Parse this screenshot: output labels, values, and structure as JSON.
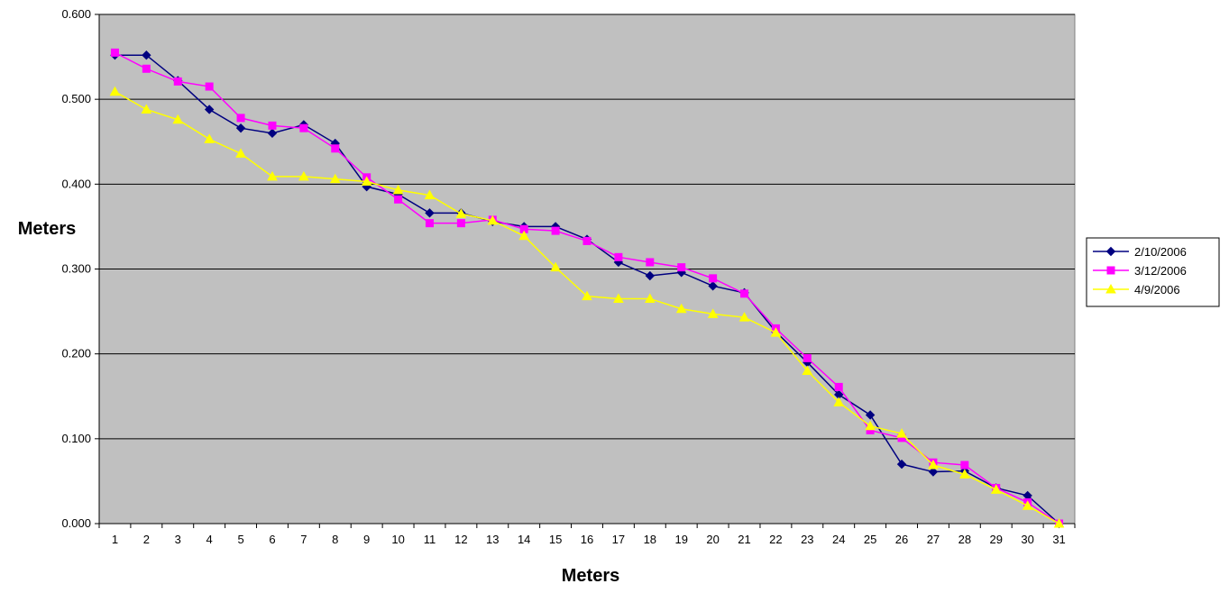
{
  "chart_data": {
    "type": "line",
    "title": "",
    "xlabel": "Meters",
    "ylabel": "Meters",
    "ylim": [
      0,
      0.6
    ],
    "yticks": [
      "0.000",
      "0.100",
      "0.200",
      "0.300",
      "0.400",
      "0.500",
      "0.600"
    ],
    "categories": [
      "1",
      "2",
      "3",
      "4",
      "5",
      "6",
      "7",
      "8",
      "9",
      "10",
      "11",
      "12",
      "13",
      "14",
      "15",
      "16",
      "17",
      "18",
      "19",
      "20",
      "21",
      "22",
      "23",
      "24",
      "25",
      "26",
      "27",
      "28",
      "29",
      "30",
      "31"
    ],
    "grid": "horizontal major gridlines",
    "legend_position": "right",
    "plot_background": "#c0c0c0",
    "series": [
      {
        "name": "2/10/2006",
        "color": "#000080",
        "marker": "diamond",
        "values": [
          0.552,
          0.552,
          0.522,
          0.488,
          0.466,
          0.46,
          0.47,
          0.448,
          0.397,
          0.388,
          0.366,
          0.366,
          0.356,
          0.35,
          0.35,
          0.335,
          0.308,
          0.292,
          0.296,
          0.28,
          0.272,
          0.226,
          0.19,
          0.152,
          0.128,
          0.07,
          0.061,
          0.062,
          0.042,
          0.033,
          0.0
        ]
      },
      {
        "name": "3/12/2006",
        "color": "#ff00ff",
        "marker": "square",
        "values": [
          0.555,
          0.536,
          0.521,
          0.515,
          0.478,
          0.469,
          0.466,
          0.442,
          0.408,
          0.382,
          0.354,
          0.354,
          0.358,
          0.347,
          0.345,
          0.333,
          0.314,
          0.308,
          0.302,
          0.289,
          0.271,
          0.23,
          0.195,
          0.161,
          0.11,
          0.101,
          0.072,
          0.069,
          0.042,
          0.025,
          0.0
        ]
      },
      {
        "name": "4/9/2006",
        "color": "#ffff00",
        "marker": "triangle",
        "values": [
          0.509,
          0.488,
          0.476,
          0.453,
          0.436,
          0.409,
          0.409,
          0.406,
          0.403,
          0.393,
          0.387,
          0.365,
          0.357,
          0.339,
          0.302,
          0.268,
          0.265,
          0.265,
          0.253,
          0.247,
          0.243,
          0.225,
          0.18,
          0.143,
          0.115,
          0.106,
          0.069,
          0.058,
          0.04,
          0.021,
          0.0
        ]
      }
    ]
  }
}
